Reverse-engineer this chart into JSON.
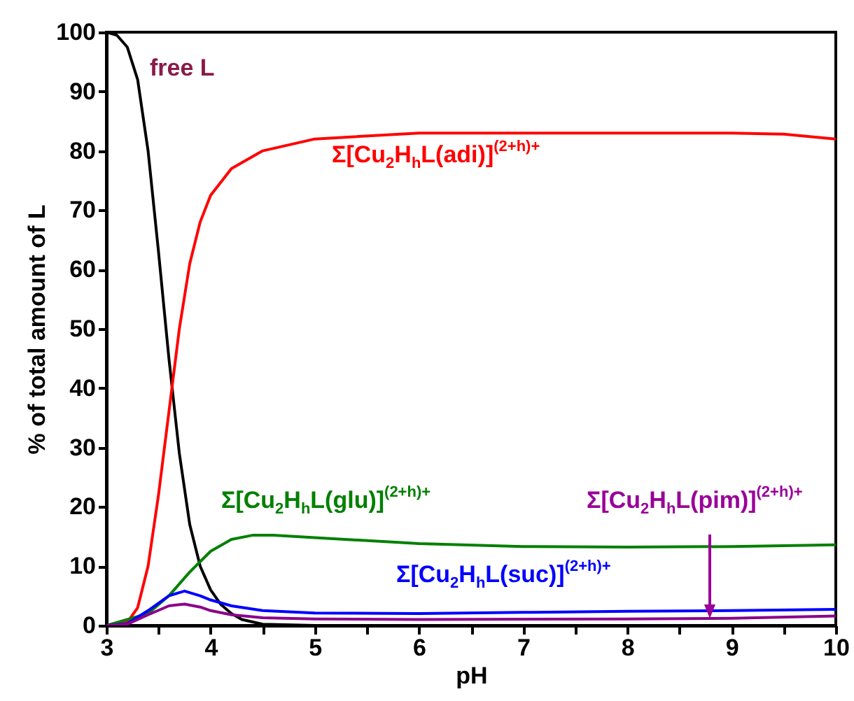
{
  "chart_data": {
    "type": "line",
    "xlabel": "pH",
    "ylabel": "% of total amount of L",
    "xlim": [
      3,
      10
    ],
    "ylim": [
      0,
      100
    ],
    "xticks": [
      3,
      {
        "value": 3.5,
        "label": null
      },
      4,
      {
        "value": 4.5,
        "label": null
      },
      5,
      {
        "value": 5.5,
        "label": null
      },
      6,
      {
        "value": 6.5,
        "label": null
      },
      7,
      {
        "value": 7.5,
        "label": null
      },
      8,
      {
        "value": 8.5,
        "label": null
      },
      9,
      {
        "value": 9.5,
        "label": null
      },
      10
    ],
    "yticks": [
      0,
      10,
      20,
      30,
      40,
      50,
      60,
      70,
      80,
      90,
      100
    ],
    "series": [
      {
        "name": "free L",
        "color": "#000000",
        "x": [
          3,
          3.1,
          3.2,
          3.3,
          3.4,
          3.5,
          3.6,
          3.7,
          3.8,
          3.9,
          4.0,
          4.1,
          4.2,
          4.3,
          4.5,
          5,
          10
        ],
        "values": [
          100,
          99.5,
          97.5,
          92,
          80,
          63,
          45,
          29,
          17,
          10,
          6,
          3.5,
          2,
          1,
          0.2,
          0,
          0
        ]
      },
      {
        "name": "Σ[Cu$_{2}$H$_{h}$L(adi)]$^{(2+h)+}$",
        "color": "#ff0000",
        "x": [
          3,
          3.2,
          3.3,
          3.4,
          3.5,
          3.6,
          3.7,
          3.8,
          3.9,
          4.0,
          4.2,
          4.5,
          5,
          6,
          7,
          8,
          9,
          9.5,
          10
        ],
        "values": [
          0,
          0.5,
          3,
          10,
          22,
          36,
          50,
          61,
          68,
          72.5,
          77,
          80,
          82,
          83,
          83,
          83,
          83,
          82.8,
          82
        ]
      },
      {
        "name": "Σ[Cu$_{2}$H$_{h}$L(glu)]$^{(2+h)+}$",
        "color": "#008000",
        "x": [
          3,
          3.4,
          3.6,
          3.8,
          4.0,
          4.2,
          4.4,
          4.6,
          5,
          6,
          7,
          8,
          9,
          10
        ],
        "values": [
          0,
          2,
          5,
          9,
          12.5,
          14.5,
          15.2,
          15.2,
          14.8,
          13.8,
          13.3,
          13.2,
          13.3,
          13.6
        ]
      },
      {
        "name": "Σ[Cu$_{2}$H$_{h}$L(suc)]$^{(2+h)+}$",
        "color": "#0000ff",
        "x": [
          3,
          3.2,
          3.4,
          3.6,
          3.75,
          3.9,
          4.0,
          4.2,
          4.5,
          5,
          6,
          7,
          8,
          9,
          10
        ],
        "values": [
          0,
          0.3,
          2.5,
          5,
          5.8,
          5,
          4.3,
          3.3,
          2.5,
          2.1,
          2,
          2.2,
          2.4,
          2.5,
          2.7
        ]
      },
      {
        "name": "Σ[Cu$_{2}$H$_{h}$L(pim)]$^{(2+h)+}$",
        "color": "#8b008b",
        "x": [
          3,
          3.2,
          3.4,
          3.6,
          3.75,
          3.9,
          4.0,
          4.2,
          4.5,
          5,
          6,
          8,
          9,
          10
        ],
        "values": [
          0,
          0.2,
          1.8,
          3.3,
          3.6,
          3.1,
          2.5,
          1.8,
          1.3,
          1.1,
          1,
          1.1,
          1.2,
          1.6
        ]
      }
    ]
  }
}
